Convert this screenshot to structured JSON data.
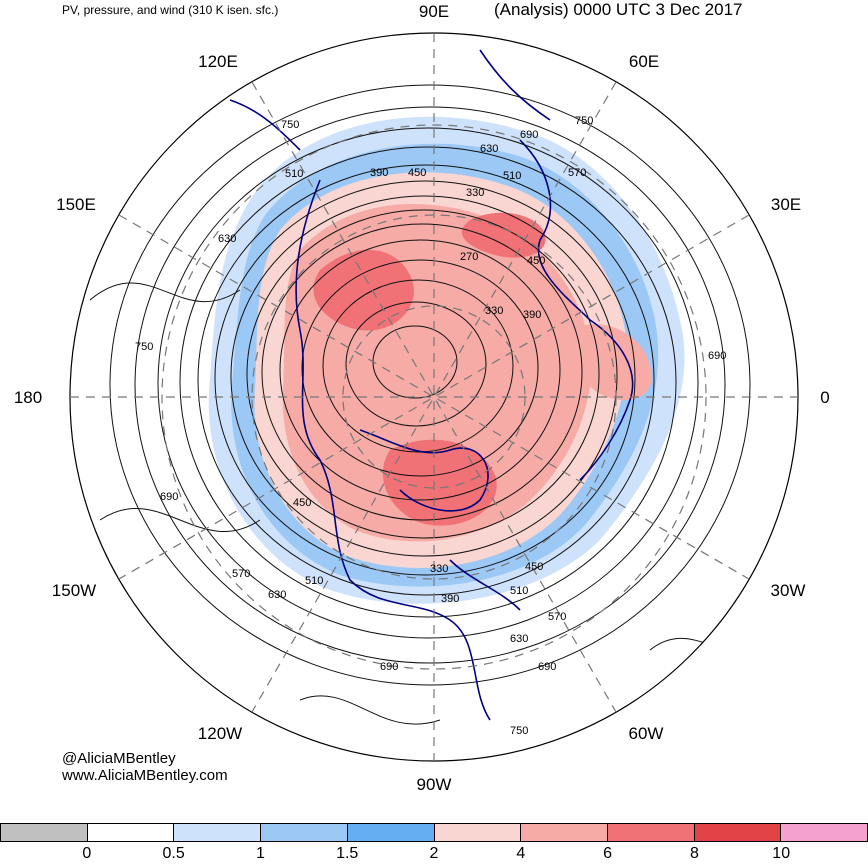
{
  "title": {
    "left": "PV, pressure, and wind (310 K isen. sfc.)",
    "right": "(Analysis) 0000 UTC 3 Dec 2017"
  },
  "credits": {
    "handle": "@AliciaMBentley",
    "website": "www.AliciaMBentley.com"
  },
  "longitude_labels": [
    "90E",
    "60E",
    "30E",
    "0",
    "30W",
    "60W",
    "90W",
    "120W",
    "150W",
    "180",
    "150E",
    "120E"
  ],
  "contour_labels": [
    "750",
    "690",
    "630",
    "570",
    "510",
    "450",
    "390",
    "330",
    "270"
  ],
  "colorbar": {
    "ticks": [
      "0",
      "0.5",
      "1",
      "1.5",
      "2",
      "4",
      "6",
      "8",
      "10"
    ],
    "colors": [
      "#c0c0c0",
      "#ffffff",
      "#cfe2fb",
      "#9cc8f5",
      "#66aef2",
      "#f9d6d1",
      "#f6aba6",
      "#f07276",
      "#e04246",
      "#f4a1cf"
    ]
  },
  "colors": {
    "coast": "#00007f",
    "contour": "#111111",
    "grid": "#777777"
  }
}
